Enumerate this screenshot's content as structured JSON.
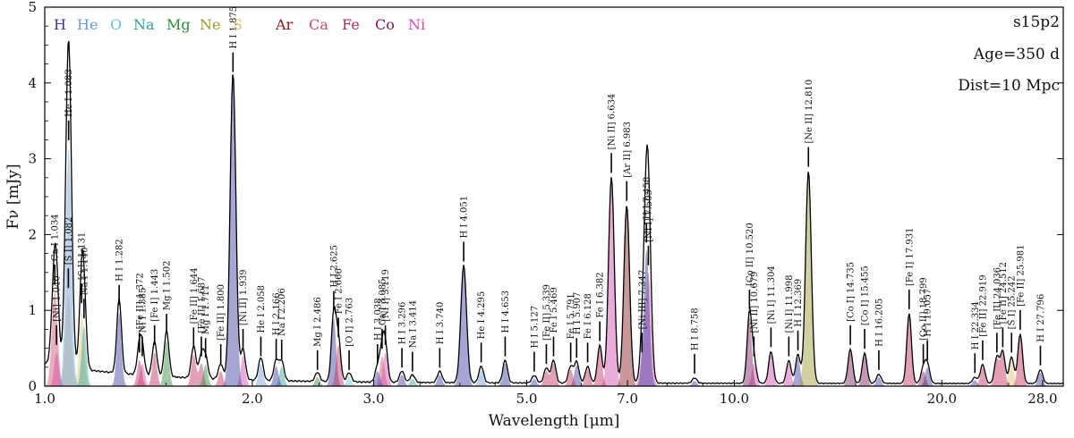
{
  "chart_data": {
    "type": "line",
    "title_lines": [
      "s15p2",
      "Age=350 d",
      "Dist=10 Mpc"
    ],
    "xlabel": "Wavelength [μm]",
    "ylabel": "Fν [mJy]",
    "xscale": "log",
    "xlim": [
      1.0,
      30.0
    ],
    "ylim": [
      0,
      5
    ],
    "xticks": [
      {
        "value": 1.0,
        "label": "1.0"
      },
      {
        "value": 2.0,
        "label": "2.0"
      },
      {
        "value": 3.0,
        "label": "3.0"
      },
      {
        "value": 5.0,
        "label": "5.0"
      },
      {
        "value": 7.0,
        "label": "7.0"
      },
      {
        "value": 10.0,
        "label": "10.0"
      },
      {
        "value": 20.0,
        "label": "20.0"
      },
      {
        "value": 28.0,
        "label": "28.0"
      }
    ],
    "yticks": [
      0,
      1,
      2,
      3,
      4,
      5
    ],
    "legend": [
      {
        "name": "H",
        "color": "#3a3aa0"
      },
      {
        "name": "He",
        "color": "#6a9ad8"
      },
      {
        "name": "O",
        "color": "#5ec8e0"
      },
      {
        "name": "Na",
        "color": "#2aa090"
      },
      {
        "name": "Mg",
        "color": "#2a8a3a"
      },
      {
        "name": "Ne",
        "color": "#9a9a2a"
      },
      {
        "name": "S",
        "color": "#d8c070"
      },
      {
        "name": "Ar",
        "color": "#8a1a1a"
      },
      {
        "name": "Ca",
        "color": "#d04a6a"
      },
      {
        "name": "Fe",
        "color": "#c02a5a"
      },
      {
        "name": "Co",
        "color": "#7a1a5a"
      },
      {
        "name": "Ni",
        "color": "#d04ab0"
      }
    ],
    "lines": [
      {
        "label": "Ca I 1.034",
        "wl": 1.034,
        "peak": 1.25,
        "el": "Ca"
      },
      {
        "label": "[Ni] 1.040",
        "wl": 1.04,
        "peak": 0.45,
        "el": "Ni"
      },
      {
        "label": "[S I] 1.082",
        "wl": 1.082,
        "peak": 1.2,
        "el": "S"
      },
      {
        "label": "He I 1.083",
        "wl": 1.083,
        "peak": 3.15,
        "el": "He"
      },
      {
        "label": "[S I] 1.131",
        "wl": 1.131,
        "peak": 1.0,
        "el": "S"
      },
      {
        "label": "Na I 1.140",
        "wl": 1.14,
        "peak": 0.8,
        "el": "Na"
      },
      {
        "label": "H I 1.282",
        "wl": 1.282,
        "peak": 0.98,
        "el": "H"
      },
      {
        "label": "[Fe II] 1.372",
        "wl": 1.372,
        "peak": 0.35,
        "el": "Fe"
      },
      {
        "label": "Ni I 1.385",
        "wl": 1.385,
        "peak": 0.3,
        "el": "Ni"
      },
      {
        "label": "[Fe I] 1.443",
        "wl": 1.443,
        "peak": 0.45,
        "el": "Fe"
      },
      {
        "label": "Mg I 1.502",
        "wl": 1.502,
        "peak": 0.6,
        "el": "Mg"
      },
      {
        "label": "[Fe II] 1.644",
        "wl": 1.644,
        "peak": 0.42,
        "el": "Fe"
      },
      {
        "label": "[Fe II] 1.687",
        "wl": 1.687,
        "peak": 0.3,
        "el": "Fe"
      },
      {
        "label": "Mg I 1.711",
        "wl": 1.711,
        "peak": 0.28,
        "el": "Mg"
      },
      {
        "label": "[Fe II] 1.800",
        "wl": 1.8,
        "peak": 0.2,
        "el": "Fe"
      },
      {
        "label": "H I 1.875",
        "wl": 1.875,
        "peak": 4.05,
        "el": "H"
      },
      {
        "label": "[Ni II] 1.939",
        "wl": 1.939,
        "peak": 0.4,
        "el": "Ni"
      },
      {
        "label": "He I 2.058",
        "wl": 2.058,
        "peak": 0.3,
        "el": "He"
      },
      {
        "label": "H I 2.166",
        "wl": 2.166,
        "peak": 0.27,
        "el": "H"
      },
      {
        "label": "Na I 2.206",
        "wl": 2.206,
        "peak": 0.26,
        "el": "Na"
      },
      {
        "label": "Mg I 2.486",
        "wl": 2.486,
        "peak": 0.12,
        "el": "Mg"
      },
      {
        "label": "H I 2.625",
        "wl": 2.625,
        "peak": 0.9,
        "el": "H"
      },
      {
        "label": "Fe I 2.666",
        "wl": 2.666,
        "peak": 0.55,
        "el": "Fe"
      },
      {
        "label": "[O I] 2.763",
        "wl": 2.763,
        "peak": 0.12,
        "el": "O"
      },
      {
        "label": "H I 3.038",
        "wl": 3.038,
        "peak": 0.2,
        "el": "H"
      },
      {
        "label": "Ca I 3.085",
        "wl": 3.085,
        "peak": 0.4,
        "el": "Ca"
      },
      {
        "label": "[Ni I] 3.119",
        "wl": 3.119,
        "peak": 0.45,
        "el": "Ni"
      },
      {
        "label": "H I 3.296",
        "wl": 3.296,
        "peak": 0.15,
        "el": "H"
      },
      {
        "label": "Na I 3.414",
        "wl": 3.414,
        "peak": 0.1,
        "el": "Na"
      },
      {
        "label": "H I 3.740",
        "wl": 3.74,
        "peak": 0.15,
        "el": "H"
      },
      {
        "label": "H I 4.051",
        "wl": 4.051,
        "peak": 1.55,
        "el": "H"
      },
      {
        "label": "He I 4.295",
        "wl": 4.295,
        "peak": 0.22,
        "el": "He"
      },
      {
        "label": "H I 4.653",
        "wl": 4.653,
        "peak": 0.3,
        "el": "H"
      },
      {
        "label": "H I 5.127",
        "wl": 5.127,
        "peak": 0.1,
        "el": "H"
      },
      {
        "label": "[Fe II] 5.339",
        "wl": 5.339,
        "peak": 0.2,
        "el": "Fe"
      },
      {
        "label": "Fe I 5.469",
        "wl": 5.469,
        "peak": 0.3,
        "el": "Fe"
      },
      {
        "label": "Fe I 5.791",
        "wl": 5.791,
        "peak": 0.22,
        "el": "Fe"
      },
      {
        "label": "H I 5.907",
        "wl": 5.907,
        "peak": 0.28,
        "el": "H"
      },
      {
        "label": "Fe I 6.128",
        "wl": 6.128,
        "peak": 0.22,
        "el": "Fe"
      },
      {
        "label": "Fe I 6.382",
        "wl": 6.382,
        "peak": 0.5,
        "el": "Fe"
      },
      {
        "label": "[Ni II] 6.634",
        "wl": 6.634,
        "peak": 2.72,
        "el": "Ni"
      },
      {
        "label": "[Ar II] 6.983",
        "wl": 6.983,
        "peak": 2.35,
        "el": "Ar"
      },
      {
        "label": "[Ni III] 7.347",
        "wl": 7.347,
        "peak": 0.35,
        "el": "Ni"
      },
      {
        "label": "H I 7.458",
        "wl": 7.458,
        "peak": 1.8,
        "el": "H"
      },
      {
        "label": "[Ni I] 7.505",
        "wl": 7.505,
        "peak": 1.5,
        "el": "Ni"
      },
      {
        "label": "H I 8.758",
        "wl": 8.758,
        "peak": 0.07,
        "el": "H"
      },
      {
        "label": "[Co II] 10.520",
        "wl": 10.52,
        "peak": 0.92,
        "el": "Co"
      },
      {
        "label": "[Ni II] 10.679",
        "wl": 10.679,
        "peak": 0.3,
        "el": "Ni"
      },
      {
        "label": "[Ni I] 11.304",
        "wl": 11.304,
        "peak": 0.42,
        "el": "Ni"
      },
      {
        "label": "[Ni I] 11.998",
        "wl": 11.998,
        "peak": 0.3,
        "el": "Ni"
      },
      {
        "label": "H I 12.369",
        "wl": 12.369,
        "peak": 0.38,
        "el": "H"
      },
      {
        "label": "[Ne II] 12.810",
        "wl": 12.81,
        "peak": 2.8,
        "el": "Ne"
      },
      {
        "label": "[Co I] 14.735",
        "wl": 14.735,
        "peak": 0.45,
        "el": "Co"
      },
      {
        "label": "[Co I] 15.455",
        "wl": 15.455,
        "peak": 0.4,
        "el": "Co"
      },
      {
        "label": "H I 16.205",
        "wl": 16.205,
        "peak": 0.12,
        "el": "H"
      },
      {
        "label": "[Fe I] 17.931",
        "wl": 17.931,
        "peak": 0.92,
        "el": "Fe"
      },
      {
        "label": "[Co II] 18.799",
        "wl": 18.799,
        "peak": 0.2,
        "el": "Co"
      },
      {
        "label": "H I 19.057",
        "wl": 19.057,
        "peak": 0.25,
        "el": "H"
      },
      {
        "label": "H I 22.334",
        "wl": 22.334,
        "peak": 0.08,
        "el": "H"
      },
      {
        "label": "[Fe II] 22.919",
        "wl": 22.919,
        "peak": 0.25,
        "el": "Fe"
      },
      {
        "label": "[Fe II] 24.036",
        "wl": 24.036,
        "peak": 0.35,
        "el": "Fe"
      },
      {
        "label": "[Fe II] 24.512",
        "wl": 24.512,
        "peak": 0.42,
        "el": "Fe"
      },
      {
        "label": "[S I] 25.242",
        "wl": 25.242,
        "peak": 0.35,
        "el": "S"
      },
      {
        "label": "[Fe II] 25.981",
        "wl": 25.981,
        "peak": 0.65,
        "el": "Fe"
      },
      {
        "label": "H I 27.796",
        "wl": 27.796,
        "peak": 0.18,
        "el": "H"
      }
    ]
  }
}
